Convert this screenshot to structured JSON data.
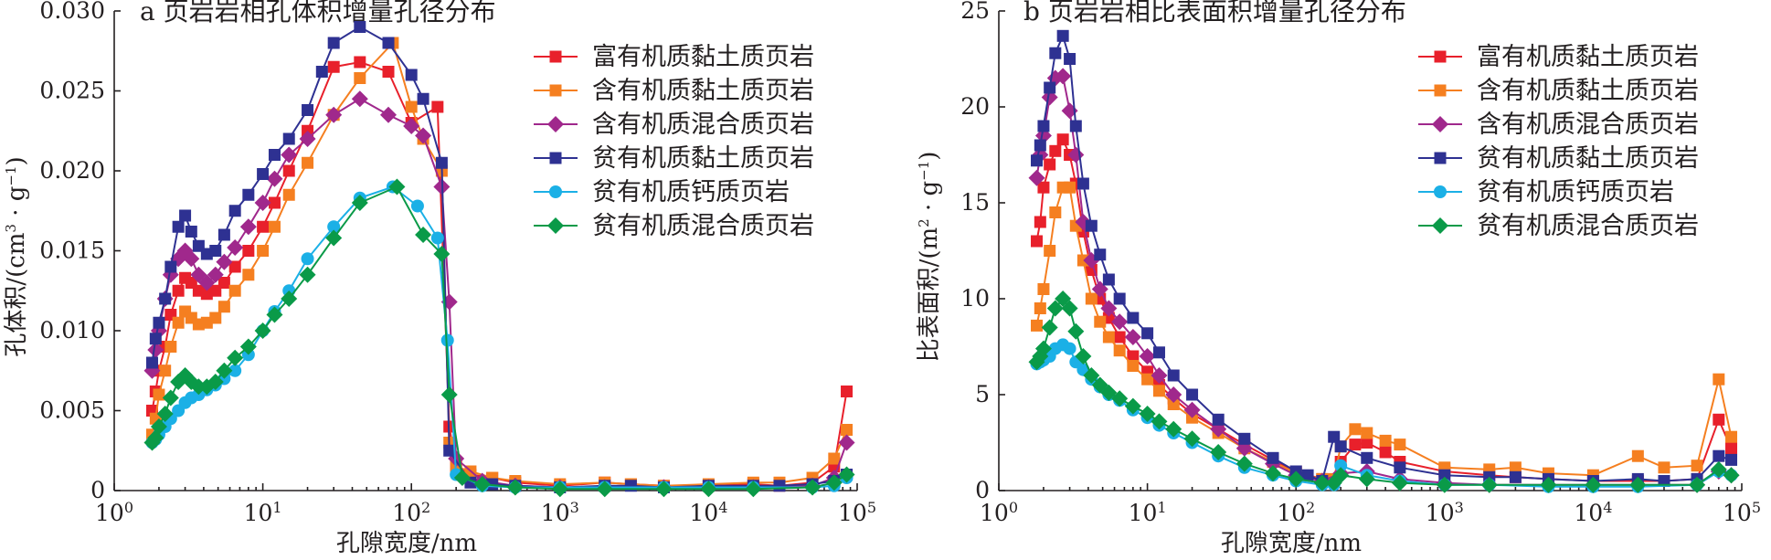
{
  "chart_data": [
    {
      "type": "line",
      "title": "a 页岩岩相孔体积增量孔径分布",
      "xlabel": "孔隙宽度/nm",
      "ylabel": "孔体积/(cm³·g⁻¹)",
      "x_scale": "log",
      "xlim": [
        1,
        100000
      ],
      "ylim": [
        0,
        0.03
      ],
      "x_ticks": [
        "10^0",
        "10^1",
        "10^2",
        "10^3",
        "10^4",
        "10^5"
      ],
      "y_ticks": [
        "0",
        "0.005",
        "0.010",
        "0.015",
        "0.020",
        "0.025",
        "0.030"
      ],
      "y_tick_values": [
        0,
        0.005,
        0.01,
        0.015,
        0.02,
        0.025,
        0.03
      ],
      "legend_position": "top-right",
      "series": [
        {
          "name": "富有机质黏土质页岩",
          "color": "#e8202b",
          "marker": "square",
          "x": [
            1.8,
            1.9,
            2.0,
            2.2,
            2.4,
            2.7,
            3.0,
            3.3,
            3.7,
            4.2,
            4.8,
            5.5,
            6.5,
            8,
            10,
            12,
            15,
            20,
            30,
            45,
            70,
            100,
            150,
            180,
            200,
            250,
            350,
            500,
            1000,
            2000,
            3000,
            5000,
            10000,
            20000,
            30000,
            50000,
            70000,
            85000
          ],
          "y": [
            0.005,
            0.0062,
            0.0075,
            0.009,
            0.011,
            0.0125,
            0.0133,
            0.013,
            0.0125,
            0.0123,
            0.0125,
            0.013,
            0.014,
            0.015,
            0.0165,
            0.018,
            0.02,
            0.0225,
            0.0265,
            0.0268,
            0.0262,
            0.023,
            0.024,
            0.004,
            0.0015,
            0.001,
            0.0008,
            0.0005,
            0.0003,
            0.0005,
            0.0004,
            0.0003,
            0.0003,
            0.0004,
            0.0003,
            0.0005,
            0.0015,
            0.0062
          ]
        },
        {
          "name": "含有机质黏土质页岩",
          "color": "#f57f20",
          "marker": "square",
          "x": [
            1.8,
            1.9,
            2.0,
            2.2,
            2.4,
            2.7,
            3.0,
            3.3,
            3.7,
            4.2,
            4.8,
            5.5,
            6.5,
            8,
            10,
            12,
            15,
            20,
            30,
            45,
            75,
            100,
            120,
            160,
            180,
            200,
            250,
            350,
            500,
            1000,
            2000,
            3000,
            5000,
            10000,
            20000,
            30000,
            50000,
            70000,
            85000
          ],
          "y": [
            0.0035,
            0.0045,
            0.006,
            0.0075,
            0.009,
            0.0105,
            0.0112,
            0.0108,
            0.0104,
            0.0105,
            0.0108,
            0.0115,
            0.0125,
            0.0135,
            0.015,
            0.0165,
            0.0185,
            0.0205,
            0.0235,
            0.0258,
            0.028,
            0.024,
            0.022,
            0.02,
            0.003,
            0.0015,
            0.0012,
            0.0008,
            0.0006,
            0.0004,
            0.0005,
            0.0004,
            0.0003,
            0.0004,
            0.0005,
            0.0005,
            0.0008,
            0.002,
            0.0038
          ]
        },
        {
          "name": "含有机质混合质页岩",
          "color": "#a0288c",
          "marker": "diamond",
          "x": [
            1.8,
            1.9,
            2.0,
            2.2,
            2.4,
            2.7,
            3.0,
            3.3,
            3.7,
            4.2,
            4.8,
            5.5,
            6.5,
            8,
            10,
            12,
            15,
            20,
            30,
            45,
            70,
            100,
            120,
            160,
            180,
            200,
            300,
            500,
            1000,
            2000,
            5000,
            10000,
            20000,
            50000,
            70000,
            85000
          ],
          "y": [
            0.0075,
            0.0088,
            0.01,
            0.012,
            0.0135,
            0.0145,
            0.015,
            0.0145,
            0.0135,
            0.013,
            0.0135,
            0.0143,
            0.0152,
            0.0165,
            0.018,
            0.0195,
            0.021,
            0.022,
            0.0235,
            0.0245,
            0.0235,
            0.0228,
            0.0222,
            0.019,
            0.0118,
            0.002,
            0.0006,
            0.0003,
            0.0002,
            0.0002,
            0.0002,
            0.0002,
            0.0002,
            0.0003,
            0.0008,
            0.003
          ]
        },
        {
          "name": "贫有机质黏土质页岩",
          "color": "#2e3192",
          "marker": "square",
          "x": [
            1.8,
            1.9,
            2.0,
            2.2,
            2.4,
            2.7,
            3.0,
            3.3,
            3.7,
            4.2,
            4.8,
            5.5,
            6.5,
            8,
            10,
            12,
            15,
            20,
            25,
            30,
            45,
            70,
            100,
            120,
            160,
            180,
            250,
            350,
            500,
            1000,
            2000,
            3000,
            5000,
            10000,
            20000,
            30000,
            50000,
            70000,
            85000
          ],
          "y": [
            0.008,
            0.0095,
            0.0105,
            0.012,
            0.014,
            0.0165,
            0.0172,
            0.0162,
            0.0153,
            0.0148,
            0.015,
            0.016,
            0.0175,
            0.0185,
            0.0198,
            0.021,
            0.022,
            0.0238,
            0.0262,
            0.028,
            0.029,
            0.028,
            0.026,
            0.0245,
            0.0205,
            0.0025,
            0.0005,
            0.0004,
            0.0003,
            0.0002,
            0.0003,
            0.0003,
            0.0002,
            0.0003,
            0.0003,
            0.0003,
            0.0004,
            0.0006,
            0.001
          ]
        },
        {
          "name": "贫有机质钙质页岩",
          "color": "#1bb0e6",
          "marker": "circle",
          "x": [
            1.8,
            1.9,
            2.0,
            2.2,
            2.4,
            2.7,
            3.0,
            3.3,
            3.7,
            4.2,
            4.8,
            5.5,
            6.5,
            8,
            10,
            12,
            15,
            20,
            30,
            45,
            75,
            110,
            150,
            175,
            200,
            300,
            500,
            1000,
            2000,
            5000,
            10000,
            20000,
            50000,
            70000,
            85000
          ],
          "y": [
            0.003,
            0.0032,
            0.0035,
            0.004,
            0.0045,
            0.005,
            0.0055,
            0.0058,
            0.006,
            0.0063,
            0.0066,
            0.007,
            0.0075,
            0.0085,
            0.01,
            0.0112,
            0.0125,
            0.0145,
            0.0165,
            0.0183,
            0.019,
            0.0178,
            0.0158,
            0.0094,
            0.001,
            0.0003,
            0.0002,
            0.0002,
            0.0002,
            0.0002,
            0.0002,
            0.0002,
            0.0002,
            0.0003,
            0.0008
          ]
        },
        {
          "name": "贫有机质混合质页岩",
          "color": "#0a9a48",
          "marker": "diamond",
          "x": [
            1.8,
            1.9,
            2.0,
            2.2,
            2.4,
            2.7,
            3.0,
            3.3,
            3.7,
            4.2,
            4.8,
            5.5,
            6.5,
            8,
            10,
            12,
            15,
            20,
            30,
            45,
            80,
            120,
            160,
            180,
            220,
            300,
            500,
            1000,
            2000,
            5000,
            10000,
            20000,
            50000,
            70000,
            85000
          ],
          "y": [
            0.003,
            0.0033,
            0.004,
            0.0048,
            0.0058,
            0.0068,
            0.0072,
            0.0068,
            0.0065,
            0.0065,
            0.0068,
            0.0075,
            0.0083,
            0.009,
            0.01,
            0.011,
            0.012,
            0.0135,
            0.0158,
            0.018,
            0.019,
            0.016,
            0.0148,
            0.006,
            0.0008,
            0.0004,
            0.0002,
            0.0001,
            0.0001,
            0.0001,
            0.0001,
            0.0001,
            0.0002,
            0.0005,
            0.001
          ]
        }
      ]
    },
    {
      "type": "line",
      "title": "b 页岩岩相比表面积增量孔径分布",
      "xlabel": "孔隙宽度/nm",
      "ylabel": "比表面积/(m²·g⁻¹)",
      "x_scale": "log",
      "xlim": [
        1,
        100000
      ],
      "ylim": [
        0,
        25
      ],
      "x_ticks": [
        "10^0",
        "10^1",
        "10^2",
        "10^3",
        "10^4",
        "10^5"
      ],
      "y_ticks": [
        "0",
        "5",
        "10",
        "15",
        "20",
        "25"
      ],
      "y_tick_values": [
        0,
        5,
        10,
        15,
        20,
        25
      ],
      "legend_position": "top-right",
      "series": [
        {
          "name": "富有机质黏土质页岩",
          "color": "#e8202b",
          "marker": "square",
          "x": [
            1.8,
            1.9,
            2.0,
            2.2,
            2.4,
            2.7,
            3.0,
            3.3,
            3.7,
            4.2,
            4.8,
            5.5,
            6.5,
            8,
            10,
            12,
            15,
            20,
            30,
            45,
            70,
            100,
            150,
            180,
            200,
            250,
            300,
            400,
            500,
            1000,
            2000,
            3000,
            5000,
            10000,
            20000,
            30000,
            50000,
            70000,
            85000
          ],
          "y": [
            13.0,
            14.0,
            15.8,
            17.0,
            17.7,
            18.3,
            17.5,
            16.0,
            13.5,
            11.5,
            10.0,
            9.0,
            8.0,
            7.0,
            6.2,
            5.5,
            4.8,
            4.0,
            3.2,
            2.4,
            1.6,
            1.0,
            0.6,
            0.5,
            1.5,
            2.4,
            2.5,
            2.0,
            1.5,
            1.0,
            0.8,
            0.7,
            0.6,
            0.5,
            0.5,
            0.5,
            0.6,
            3.7,
            2.2
          ]
        },
        {
          "name": "含有机质黏土质页岩",
          "color": "#f57f20",
          "marker": "square",
          "x": [
            1.8,
            1.9,
            2.0,
            2.2,
            2.4,
            2.7,
            3.0,
            3.3,
            3.7,
            4.2,
            4.8,
            5.5,
            6.5,
            8,
            10,
            12,
            15,
            20,
            30,
            45,
            70,
            100,
            150,
            180,
            200,
            250,
            300,
            400,
            500,
            1000,
            2000,
            3000,
            5000,
            10000,
            20000,
            30000,
            50000,
            70000,
            85000
          ],
          "y": [
            8.6,
            9.5,
            10.5,
            12.5,
            14.5,
            15.8,
            15.8,
            13.8,
            12.0,
            10.0,
            8.8,
            8.0,
            7.3,
            6.5,
            5.8,
            5.2,
            4.5,
            3.8,
            3.0,
            2.2,
            1.5,
            0.9,
            0.6,
            0.6,
            2.3,
            3.2,
            3.0,
            2.6,
            2.4,
            1.2,
            1.1,
            1.2,
            0.9,
            0.8,
            1.8,
            1.2,
            1.3,
            5.8,
            2.8
          ]
        },
        {
          "name": "含有机质混合质页岩",
          "color": "#a0288c",
          "marker": "diamond",
          "x": [
            1.8,
            1.9,
            2.0,
            2.2,
            2.4,
            2.7,
            3.0,
            3.3,
            3.7,
            4.2,
            4.8,
            5.5,
            6.5,
            8,
            10,
            12,
            15,
            20,
            30,
            45,
            70,
            100,
            150,
            200,
            300,
            500,
            1000,
            2000,
            5000,
            10000,
            20000,
            50000,
            70000,
            85000
          ],
          "y": [
            16.3,
            17.5,
            18.5,
            20.5,
            21.5,
            21.6,
            19.8,
            17.5,
            14.0,
            12.0,
            10.5,
            9.5,
            8.8,
            8.0,
            7.0,
            6.0,
            5.0,
            4.2,
            3.2,
            2.2,
            1.4,
            0.8,
            0.5,
            0.9,
            1.0,
            0.6,
            0.4,
            0.3,
            0.3,
            0.3,
            0.3,
            0.3,
            1.0,
            0.8
          ]
        },
        {
          "name": "贫有机质黏土质页岩",
          "color": "#2e3192",
          "marker": "square",
          "x": [
            1.8,
            1.9,
            2.0,
            2.2,
            2.4,
            2.7,
            3.0,
            3.3,
            3.7,
            4.2,
            4.8,
            5.5,
            6.5,
            8,
            10,
            12,
            15,
            20,
            30,
            45,
            70,
            100,
            120,
            150,
            180,
            200,
            300,
            500,
            1000,
            2000,
            3000,
            5000,
            10000,
            20000,
            30000,
            50000,
            70000,
            85000
          ],
          "y": [
            17.2,
            18.0,
            19.0,
            21.0,
            22.8,
            23.7,
            22.5,
            19.0,
            16.0,
            13.8,
            12.3,
            11.0,
            10.0,
            9.0,
            8.2,
            7.2,
            6.0,
            5.0,
            3.7,
            2.7,
            1.7,
            1.0,
            0.8,
            0.5,
            2.8,
            2.3,
            1.7,
            1.2,
            0.8,
            0.7,
            0.7,
            0.6,
            0.5,
            0.6,
            0.5,
            0.6,
            1.8,
            1.6
          ]
        },
        {
          "name": "贫有机质钙质页岩",
          "color": "#1bb0e6",
          "marker": "circle",
          "x": [
            1.8,
            1.9,
            2.0,
            2.2,
            2.4,
            2.7,
            3.0,
            3.3,
            3.7,
            4.2,
            4.8,
            5.5,
            6.5,
            8,
            10,
            12,
            15,
            20,
            30,
            45,
            70,
            100,
            150,
            180,
            200,
            300,
            500,
            1000,
            2000,
            5000,
            10000,
            20000,
            50000,
            70000,
            85000
          ],
          "y": [
            6.6,
            6.7,
            6.8,
            7.0,
            7.4,
            7.6,
            7.4,
            6.7,
            6.3,
            5.8,
            5.4,
            5.0,
            4.7,
            4.2,
            3.8,
            3.4,
            3.0,
            2.5,
            1.8,
            1.2,
            0.8,
            0.5,
            0.3,
            0.3,
            1.3,
            0.8,
            0.5,
            0.3,
            0.3,
            0.2,
            0.2,
            0.2,
            0.3,
            1.0,
            0.8
          ]
        },
        {
          "name": "贫有机质混合质页岩",
          "color": "#0a9a48",
          "marker": "diamond",
          "x": [
            1.8,
            1.9,
            2.0,
            2.2,
            2.4,
            2.7,
            3.0,
            3.3,
            3.7,
            4.2,
            4.8,
            5.5,
            6.5,
            8,
            10,
            12,
            15,
            20,
            30,
            45,
            70,
            100,
            150,
            180,
            200,
            300,
            500,
            1000,
            2000,
            5000,
            10000,
            20000,
            50000,
            70000,
            85000
          ],
          "y": [
            6.7,
            7.0,
            7.4,
            8.5,
            9.5,
            10.0,
            9.5,
            8.3,
            7.0,
            6.0,
            5.5,
            5.1,
            4.8,
            4.4,
            4.0,
            3.6,
            3.2,
            2.7,
            2.0,
            1.4,
            0.9,
            0.6,
            0.4,
            0.4,
            0.8,
            0.6,
            0.4,
            0.3,
            0.3,
            0.3,
            0.3,
            0.3,
            0.3,
            1.1,
            0.8
          ]
        }
      ]
    }
  ]
}
